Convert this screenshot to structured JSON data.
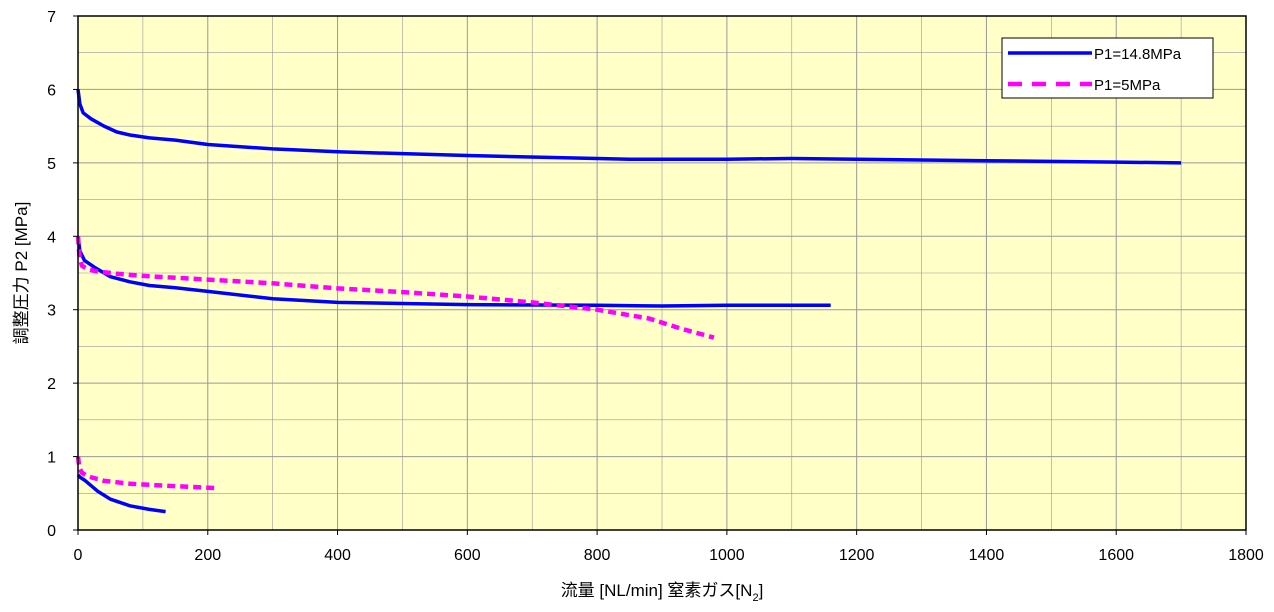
{
  "chart_data": {
    "type": "line",
    "title": "",
    "xlabel_main": "流量 [NL/min] 窒素ガス[N",
    "xlabel_sub": "2",
    "xlabel_end": "]",
    "ylabel": "調整圧力 P2 [MPa]",
    "xlim": [
      0,
      1800
    ],
    "ylim": [
      0,
      7
    ],
    "xticks": [
      0,
      200,
      400,
      600,
      800,
      1000,
      1200,
      1400,
      1600,
      1800
    ],
    "yticks": [
      0,
      1,
      2,
      3,
      4,
      5,
      6,
      7
    ],
    "x_minor_step": 100,
    "y_minor_step": 0.5,
    "grid": true,
    "plot_background": "#ffffc8",
    "legend_position": "top-right",
    "legend": [
      {
        "label": "P1=14.8MPa",
        "color": "#0000ff",
        "style": "solid"
      },
      {
        "label": "P1=5MPa",
        "color": "#ff00ff",
        "style": "dashed"
      }
    ],
    "series": [
      {
        "name": "P1=14.8MPa",
        "color": "#0000ff",
        "style": "solid",
        "x": [
          0,
          3,
          8,
          20,
          40,
          60,
          80,
          110,
          150,
          200,
          300,
          400,
          600,
          800,
          850,
          1000,
          1100,
          1200,
          1400,
          1600,
          1700
        ],
        "y": [
          6.0,
          5.8,
          5.68,
          5.6,
          5.5,
          5.42,
          5.38,
          5.34,
          5.31,
          5.25,
          5.19,
          5.15,
          5.1,
          5.06,
          5.05,
          5.05,
          5.06,
          5.05,
          5.03,
          5.01,
          5.0
        ]
      },
      {
        "name": "P1=14.8MPa",
        "color": "#0000ff",
        "style": "solid",
        "x": [
          0,
          3,
          10,
          25,
          50,
          80,
          110,
          150,
          200,
          300,
          400,
          600,
          800,
          900,
          1000,
          1160
        ],
        "y": [
          4.0,
          3.8,
          3.67,
          3.58,
          3.45,
          3.38,
          3.33,
          3.3,
          3.25,
          3.15,
          3.1,
          3.07,
          3.06,
          3.05,
          3.06,
          3.06
        ]
      },
      {
        "name": "P1=14.8MPa",
        "color": "#0000ff",
        "style": "solid",
        "x": [
          0,
          3,
          10,
          30,
          50,
          80,
          110,
          135
        ],
        "y": [
          0.75,
          0.72,
          0.68,
          0.53,
          0.42,
          0.33,
          0.28,
          0.25
        ]
      },
      {
        "name": "P1=5MPa",
        "color": "#ff00ff",
        "style": "dashed",
        "x": [
          0,
          2,
          6,
          15,
          30,
          60,
          100,
          200,
          300,
          400,
          500,
          600,
          700,
          800,
          880,
          930,
          980
        ],
        "y": [
          4.0,
          3.75,
          3.6,
          3.55,
          3.52,
          3.49,
          3.46,
          3.41,
          3.36,
          3.29,
          3.24,
          3.18,
          3.1,
          3.0,
          2.88,
          2.74,
          2.62
        ]
      },
      {
        "name": "P1=5MPa",
        "color": "#ff00ff",
        "style": "dashed",
        "x": [
          0,
          2,
          6,
          15,
          40,
          80,
          140,
          215
        ],
        "y": [
          1.0,
          0.85,
          0.78,
          0.73,
          0.67,
          0.63,
          0.6,
          0.57
        ]
      }
    ]
  }
}
